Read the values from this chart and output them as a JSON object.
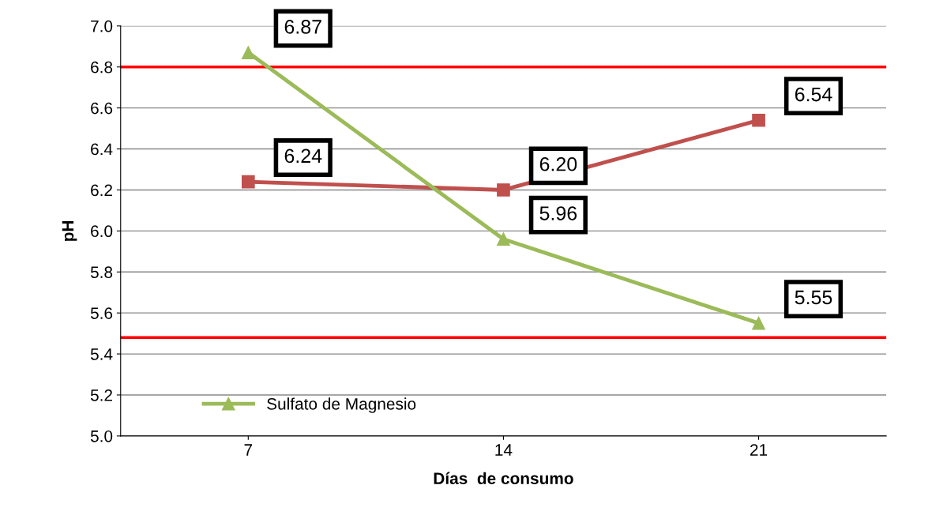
{
  "chart_data": {
    "type": "line",
    "xlabel": "Días  de consumo",
    "ylabel": "pH",
    "categories": [
      "7",
      "14",
      "21"
    ],
    "series": [
      {
        "color": "#c0504d",
        "marker": "square",
        "values": [
          6.24,
          6.2,
          6.54
        ],
        "value_labels": [
          "6.24",
          "6.20",
          "6.54"
        ]
      },
      {
        "name": "Sulfato de Magnesio",
        "color": "#9bbb59",
        "marker": "triangle",
        "values": [
          6.87,
          5.96,
          5.55
        ],
        "value_labels": [
          "6.87",
          "5.96",
          "5.55"
        ]
      }
    ],
    "ylim": [
      5.0,
      7.0
    ],
    "yticks": [
      {
        "value": 5.0,
        "label": "5.0"
      },
      {
        "value": 5.2,
        "label": "5.2"
      },
      {
        "value": 5.4,
        "label": "5.4"
      },
      {
        "value": 5.6,
        "label": "5.6"
      },
      {
        "value": 5.8,
        "label": "5.8"
      },
      {
        "value": 6.0,
        "label": "6.0"
      },
      {
        "value": 6.2,
        "label": "6.2"
      },
      {
        "value": 6.4,
        "label": "6.4"
      },
      {
        "value": 6.6,
        "label": "6.6"
      },
      {
        "value": 6.8,
        "label": "6.8"
      },
      {
        "value": 7.0,
        "label": "7.0"
      }
    ],
    "ref_lines": [
      {
        "axis": "y",
        "value": 6.8,
        "color": "#ff0000"
      },
      {
        "axis": "y",
        "value": 5.48,
        "color": "#ff0000"
      }
    ],
    "grid": "y",
    "legend": "bottom left",
    "line_style": "solid"
  }
}
